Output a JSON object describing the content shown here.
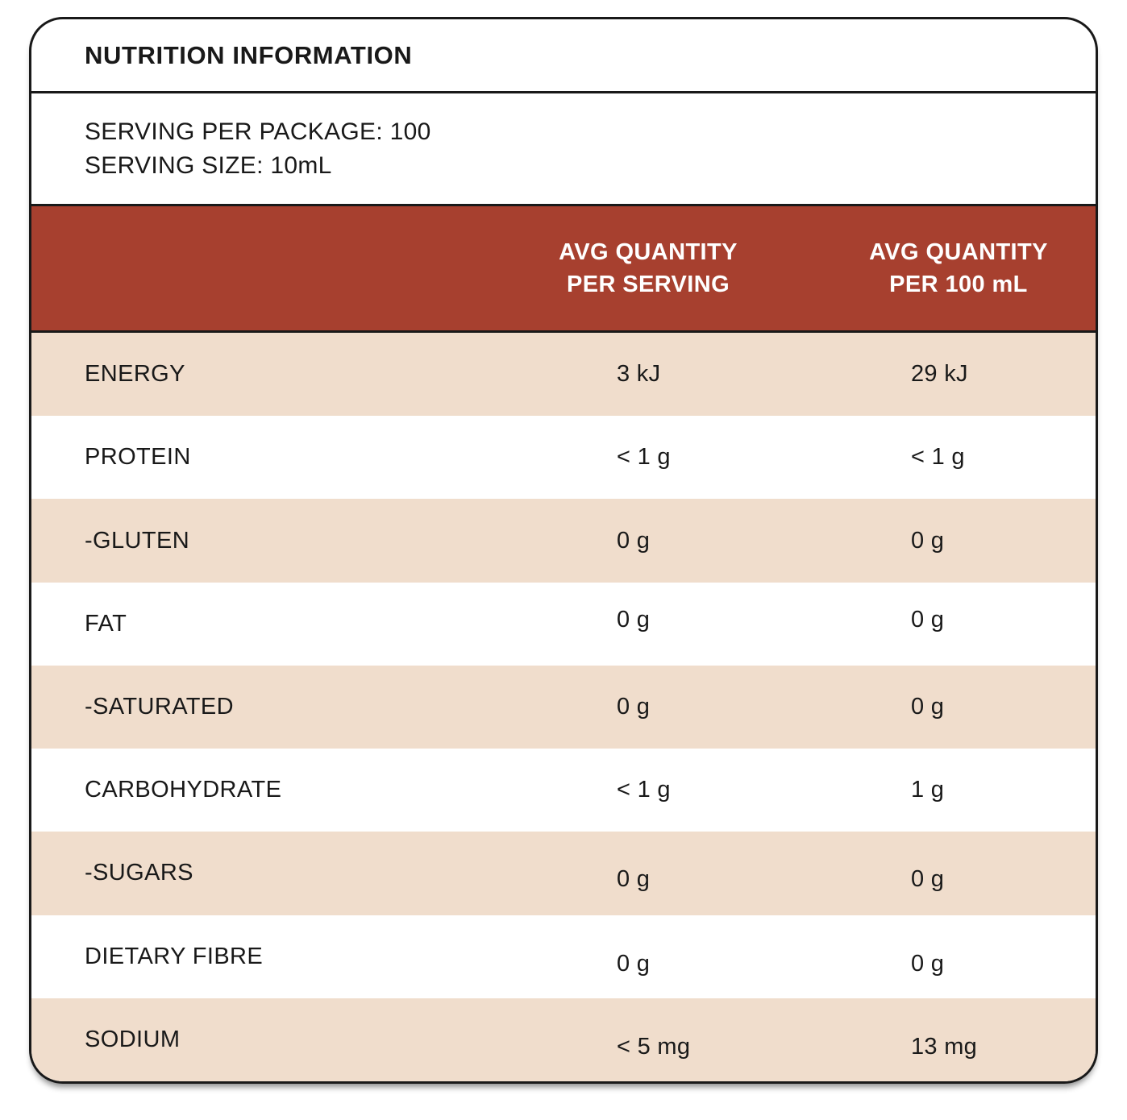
{
  "panel": {
    "title": "NUTRITION INFORMATION",
    "serving_lines": [
      "SERVING PER PACKAGE: 100",
      "SERVING SIZE: 10mL"
    ],
    "columns": [
      {
        "line1": "AVG QUANTITY",
        "line2": "PER SERVING"
      },
      {
        "line1": "AVG QUANTITY",
        "line2": "PER 100 mL"
      }
    ],
    "rows": [
      {
        "label": "ENERGY",
        "per_serving": "3 kJ",
        "per_100ml": "29 kJ"
      },
      {
        "label": "PROTEIN",
        "per_serving": "< 1 g",
        "per_100ml": "< 1 g"
      },
      {
        "label": "-GLUTEN",
        "per_serving": "0 g",
        "per_100ml": "0 g"
      },
      {
        "label": "FAT",
        "per_serving": "0 g",
        "per_100ml": "0 g"
      },
      {
        "label": "-SATURATED",
        "per_serving": "0 g",
        "per_100ml": "0 g"
      },
      {
        "label": "CARBOHYDRATE",
        "per_serving": "< 1 g",
        "per_100ml": "1 g"
      },
      {
        "label": "-SUGARS",
        "per_serving": "0 g",
        "per_100ml": "0 g"
      },
      {
        "label": "DIETARY FIBRE",
        "per_serving": "0 g",
        "per_100ml": "0 g"
      },
      {
        "label": "SODIUM",
        "per_serving": "< 5 mg",
        "per_100ml": "13 mg"
      }
    ],
    "colors": {
      "header_bg": "#A7402F",
      "header_text": "#FFFFFF",
      "row_alt_bg": "#F0DDCC",
      "row_bg": "#FFFFFF",
      "border": "#191919",
      "text": "#191919"
    }
  }
}
